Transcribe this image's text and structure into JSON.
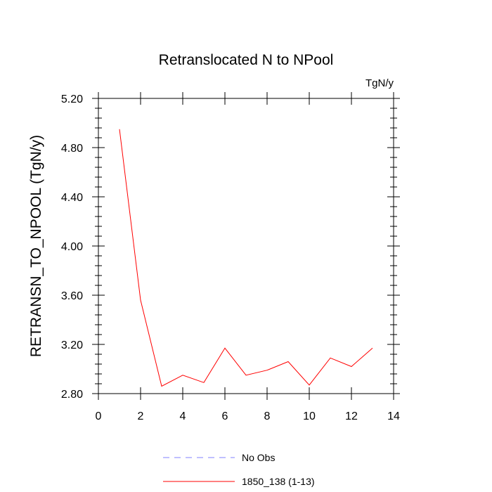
{
  "chart_data": {
    "type": "line",
    "title": "Retranslocated N to NPool",
    "units": "TgN/y",
    "ylabel": "RETRANSN_TO_NPOOL  (TgN/y)",
    "xlabel": "",
    "xlim": [
      0,
      14
    ],
    "ylim": [
      2.8,
      5.2
    ],
    "x_ticks": [
      0,
      2,
      4,
      6,
      8,
      10,
      12,
      14
    ],
    "x_tick_labels": [
      "0",
      "2",
      "4",
      "6",
      "8",
      "10",
      "12",
      "14"
    ],
    "y_ticks": [
      2.8,
      3.2,
      3.6,
      4.0,
      4.4,
      4.8,
      5.2
    ],
    "y_tick_labels": [
      "2.80",
      "3.20",
      "3.60",
      "4.00",
      "4.40",
      "4.80",
      "5.20"
    ],
    "grid": false,
    "legend_position": "bottom",
    "series": [
      {
        "name": "1850_138 (1-13)",
        "color": "#ff0000",
        "style": "solid",
        "x": [
          1,
          2,
          3,
          4,
          5,
          6,
          7,
          8,
          9,
          10,
          11,
          12,
          13
        ],
        "values": [
          4.95,
          3.56,
          2.86,
          2.95,
          2.89,
          3.17,
          2.95,
          2.99,
          3.06,
          2.87,
          3.09,
          3.02,
          3.17
        ]
      }
    ],
    "legend": [
      {
        "label": "No Obs",
        "color": "#8080ff",
        "style": "dashed"
      },
      {
        "label": "1850_138 (1-13)",
        "color": "#ff0000",
        "style": "solid"
      }
    ]
  }
}
